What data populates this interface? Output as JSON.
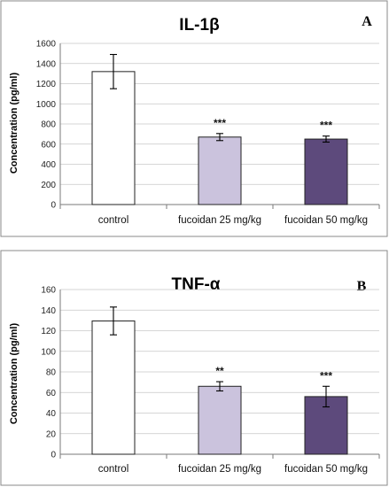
{
  "chart_data": [
    {
      "type": "bar",
      "title": "IL-1β",
      "panel_label": "A",
      "ylabel": "Concentration (pg/ml)",
      "ylim": [
        0,
        1600
      ],
      "y_ticks": [
        0,
        200,
        400,
        600,
        800,
        1000,
        1200,
        1400,
        1600
      ],
      "grid": true,
      "categories": [
        "control",
        "fucoidan 25 mg/kg",
        "fucoidan 50 mg/kg"
      ],
      "values": [
        1320,
        670,
        650
      ],
      "errors": [
        170,
        35,
        30
      ],
      "significance": [
        "",
        "***",
        "***"
      ],
      "colors": [
        "#ffffff",
        "#cbc3dd",
        "#5d4a7c"
      ]
    },
    {
      "type": "bar",
      "title": "TNF-α",
      "panel_label": "B",
      "ylabel": "Concentration (pg/ml)",
      "ylim": [
        0,
        160
      ],
      "y_ticks": [
        0,
        20,
        40,
        60,
        80,
        100,
        120,
        140,
        160
      ],
      "grid": true,
      "categories": [
        "control",
        "fucoidan 25 mg/kg",
        "fucoidan 50 mg/kg"
      ],
      "values": [
        129.5,
        66,
        56
      ],
      "errors": [
        13.5,
        4.5,
        10
      ],
      "significance": [
        "",
        "**",
        "***"
      ],
      "colors": [
        "#ffffff",
        "#cbc3dd",
        "#5d4a7c"
      ]
    }
  ]
}
